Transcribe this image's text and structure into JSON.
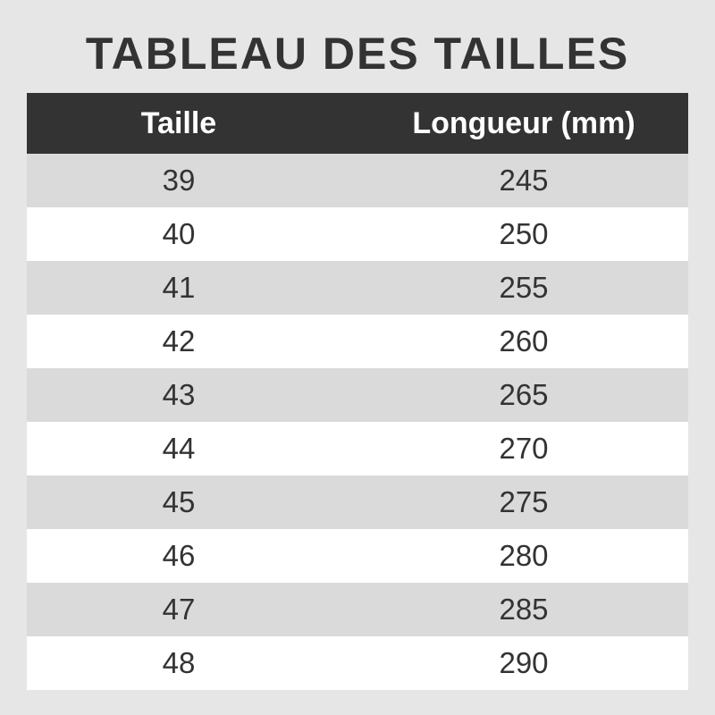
{
  "title": "TABLEAU DES TAILLES",
  "table": {
    "headers": [
      "Taille",
      "Longueur (mm)"
    ],
    "rows": [
      [
        "39",
        "245"
      ],
      [
        "40",
        "250"
      ],
      [
        "41",
        "255"
      ],
      [
        "42",
        "260"
      ],
      [
        "43",
        "265"
      ],
      [
        "44",
        "270"
      ],
      [
        "45",
        "275"
      ],
      [
        "46",
        "280"
      ],
      [
        "47",
        "285"
      ],
      [
        "48",
        "290"
      ]
    ]
  },
  "colors": {
    "header_bg": "#333333",
    "stripe": "#dadada",
    "background": "#e6e6e6"
  }
}
